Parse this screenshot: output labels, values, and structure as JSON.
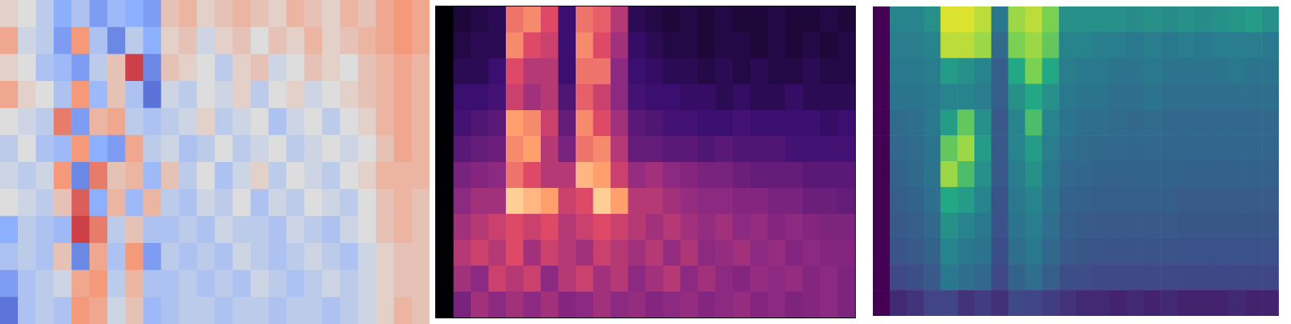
{
  "chart_data": [
    {
      "type": "heatmap",
      "color": "coolwarm",
      "zlim": [
        -1,
        1
      ],
      "xlim": [
        0,
        24
      ],
      "ylim": [
        0,
        12
      ],
      "tick_labels": false,
      "cells": [
        [
          0.1,
          0.0,
          -0.2,
          -0.5,
          -0.3,
          -0.6,
          -0.4,
          -0.5,
          -0.6,
          0.2,
          0.3,
          0.1,
          0.2,
          0.3,
          0.2,
          0.1,
          0.3,
          0.2,
          0.1,
          0.3,
          0.2,
          0.4,
          0.5,
          0.4
        ],
        [
          0.4,
          -0.1,
          -0.2,
          -0.6,
          0.5,
          -0.3,
          -0.7,
          -0.2,
          -0.5,
          0.1,
          0.2,
          -0.1,
          0.1,
          0.2,
          0.0,
          0.2,
          0.1,
          0.3,
          0.1,
          0.2,
          0.3,
          0.4,
          0.5,
          0.4
        ],
        [
          0.1,
          0.0,
          -0.3,
          -0.4,
          -0.6,
          -0.2,
          0.2,
          0.8,
          -0.7,
          0.2,
          0.1,
          0.0,
          -0.2,
          0.1,
          0.2,
          -0.1,
          0.0,
          0.2,
          0.1,
          0.0,
          0.2,
          0.3,
          0.4,
          0.3
        ],
        [
          0.4,
          0.1,
          0.0,
          -0.3,
          0.5,
          -0.4,
          0.2,
          -0.3,
          -0.8,
          -0.1,
          -0.2,
          0.0,
          -0.1,
          0.1,
          -0.2,
          0.0,
          0.1,
          -0.1,
          0.0,
          0.1,
          0.2,
          0.3,
          0.4,
          0.3
        ],
        [
          0.0,
          -0.1,
          -0.2,
          0.6,
          -0.6,
          0.3,
          0.4,
          -0.2,
          -0.3,
          -0.2,
          -0.1,
          0.1,
          -0.2,
          -0.1,
          0.0,
          -0.3,
          -0.1,
          0.0,
          -0.2,
          0.0,
          0.1,
          0.3,
          0.4,
          0.3
        ],
        [
          -0.2,
          0.0,
          -0.3,
          -0.4,
          0.5,
          -0.5,
          -0.6,
          0.4,
          -0.2,
          -0.1,
          -0.3,
          -0.2,
          0.0,
          -0.2,
          -0.1,
          0.0,
          -0.2,
          -0.1,
          0.0,
          -0.1,
          0.0,
          0.2,
          0.4,
          0.3
        ],
        [
          -0.1,
          -0.2,
          -0.1,
          0.5,
          -0.7,
          0.6,
          0.2,
          0.3,
          -0.4,
          0.2,
          -0.2,
          0.0,
          -0.3,
          -0.1,
          0.1,
          -0.2,
          0.0,
          -0.1,
          -0.2,
          0.0,
          0.1,
          0.3,
          0.3,
          0.3
        ],
        [
          0.0,
          -0.1,
          -0.2,
          0.2,
          0.7,
          -0.5,
          0.3,
          -0.4,
          0.3,
          -0.2,
          -0.3,
          -0.1,
          -0.2,
          0.0,
          -0.3,
          -0.1,
          -0.2,
          0.0,
          -0.1,
          -0.2,
          0.0,
          0.2,
          0.3,
          0.2
        ],
        [
          -0.5,
          -0.2,
          -0.3,
          -0.4,
          0.8,
          0.6,
          -0.2,
          0.2,
          -0.3,
          -0.3,
          -0.2,
          -0.3,
          -0.1,
          -0.2,
          -0.2,
          -0.3,
          -0.1,
          -0.2,
          -0.3,
          -0.1,
          0.0,
          0.2,
          0.3,
          0.2
        ],
        [
          -0.3,
          -0.2,
          -0.3,
          0.2,
          -0.7,
          0.4,
          -0.3,
          0.5,
          -0.6,
          -0.2,
          -0.3,
          -0.2,
          -0.3,
          -0.1,
          -0.2,
          -0.3,
          -0.2,
          -0.1,
          -0.2,
          -0.3,
          -0.1,
          0.1,
          0.2,
          0.2
        ],
        [
          -0.6,
          -0.3,
          -0.2,
          -0.1,
          0.4,
          0.5,
          -0.2,
          0.3,
          -0.3,
          -0.3,
          -0.2,
          -0.3,
          -0.2,
          -0.3,
          -0.1,
          -0.2,
          -0.3,
          -0.2,
          -0.1,
          -0.2,
          -0.1,
          0.1,
          0.2,
          0.2
        ],
        [
          -0.8,
          -0.3,
          -0.2,
          -0.3,
          0.5,
          0.4,
          -0.1,
          0.2,
          -0.4,
          -0.3,
          -0.2,
          -0.2,
          -0.3,
          -0.2,
          -0.2,
          -0.3,
          -0.2,
          -0.2,
          -0.3,
          -0.2,
          -0.1,
          0.1,
          0.3,
          0.2
        ]
      ]
    },
    {
      "type": "heatmap",
      "color": "magma",
      "zlim": [
        0,
        1
      ],
      "xlim": [
        0,
        24
      ],
      "ylim": [
        0,
        12
      ],
      "tick_labels": false,
      "cells": [
        [
          0,
          0.1,
          0.12,
          0.15,
          0.7,
          0.75,
          0.6,
          0.2,
          0.7,
          0.65,
          0.5,
          0.15,
          0.12,
          0.1,
          0.12,
          0.1,
          0.12,
          0.1,
          0.1,
          0.12,
          0.1,
          0.1,
          0.12,
          0.1
        ],
        [
          0,
          0.12,
          0.15,
          0.15,
          0.75,
          0.6,
          0.55,
          0.2,
          0.75,
          0.6,
          0.45,
          0.18,
          0.15,
          0.12,
          0.12,
          0.1,
          0.12,
          0.12,
          0.1,
          0.12,
          0.1,
          0.12,
          0.1,
          0.12
        ],
        [
          0,
          0.15,
          0.15,
          0.2,
          0.6,
          0.5,
          0.5,
          0.2,
          0.7,
          0.7,
          0.4,
          0.2,
          0.18,
          0.15,
          0.15,
          0.12,
          0.15,
          0.12,
          0.15,
          0.12,
          0.12,
          0.15,
          0.12,
          0.12
        ],
        [
          0,
          0.2,
          0.2,
          0.22,
          0.55,
          0.45,
          0.5,
          0.25,
          0.65,
          0.55,
          0.4,
          0.22,
          0.2,
          0.2,
          0.18,
          0.18,
          0.15,
          0.18,
          0.15,
          0.15,
          0.18,
          0.15,
          0.15,
          0.15
        ],
        [
          0,
          0.22,
          0.25,
          0.28,
          0.8,
          0.75,
          0.55,
          0.3,
          0.75,
          0.6,
          0.45,
          0.28,
          0.25,
          0.22,
          0.22,
          0.2,
          0.2,
          0.22,
          0.2,
          0.2,
          0.2,
          0.2,
          0.18,
          0.2
        ],
        [
          0,
          0.28,
          0.3,
          0.32,
          0.75,
          0.8,
          0.5,
          0.35,
          0.7,
          0.75,
          0.5,
          0.3,
          0.3,
          0.28,
          0.28,
          0.25,
          0.28,
          0.25,
          0.25,
          0.25,
          0.22,
          0.22,
          0.22,
          0.22
        ],
        [
          0,
          0.35,
          0.38,
          0.4,
          0.7,
          0.6,
          0.5,
          0.5,
          0.85,
          0.8,
          0.55,
          0.42,
          0.45,
          0.4,
          0.38,
          0.35,
          0.35,
          0.32,
          0.3,
          0.3,
          0.3,
          0.28,
          0.28,
          0.28
        ],
        [
          0,
          0.4,
          0.45,
          0.45,
          0.9,
          0.85,
          0.8,
          0.55,
          0.6,
          0.9,
          0.8,
          0.5,
          0.5,
          0.45,
          0.42,
          0.4,
          0.4,
          0.38,
          0.38,
          0.35,
          0.35,
          0.32,
          0.32,
          0.3
        ],
        [
          0,
          0.45,
          0.5,
          0.55,
          0.6,
          0.55,
          0.6,
          0.5,
          0.55,
          0.6,
          0.55,
          0.5,
          0.45,
          0.5,
          0.45,
          0.42,
          0.45,
          0.4,
          0.42,
          0.38,
          0.4,
          0.38,
          0.36,
          0.36
        ],
        [
          0,
          0.5,
          0.55,
          0.5,
          0.6,
          0.45,
          0.55,
          0.5,
          0.45,
          0.55,
          0.5,
          0.45,
          0.5,
          0.42,
          0.48,
          0.4,
          0.42,
          0.45,
          0.4,
          0.42,
          0.38,
          0.4,
          0.38,
          0.38
        ],
        [
          0,
          0.45,
          0.4,
          0.55,
          0.5,
          0.55,
          0.4,
          0.5,
          0.55,
          0.45,
          0.5,
          0.4,
          0.45,
          0.5,
          0.4,
          0.45,
          0.4,
          0.38,
          0.42,
          0.4,
          0.42,
          0.38,
          0.4,
          0.36
        ],
        [
          0,
          0.35,
          0.45,
          0.4,
          0.45,
          0.4,
          0.45,
          0.38,
          0.4,
          0.45,
          0.4,
          0.42,
          0.38,
          0.4,
          0.42,
          0.38,
          0.4,
          0.42,
          0.38,
          0.4,
          0.36,
          0.38,
          0.4,
          0.36
        ]
      ]
    },
    {
      "type": "heatmap",
      "color": "viridis",
      "zlim": [
        0,
        1
      ],
      "xlim": [
        0,
        24
      ],
      "ylim": [
        0,
        12
      ],
      "tick_labels": false,
      "cells": [
        [
          0,
          0.45,
          0.45,
          0.5,
          0.95,
          0.95,
          0.9,
          0.4,
          0.85,
          0.9,
          0.8,
          0.5,
          0.5,
          0.5,
          0.5,
          0.48,
          0.5,
          0.48,
          0.5,
          0.48,
          0.5,
          0.52,
          0.55,
          0.5
        ],
        [
          0,
          0.42,
          0.42,
          0.45,
          0.9,
          0.9,
          0.85,
          0.35,
          0.8,
          0.85,
          0.75,
          0.45,
          0.45,
          0.42,
          0.42,
          0.4,
          0.42,
          0.4,
          0.42,
          0.4,
          0.42,
          0.42,
          0.42,
          0.4
        ],
        [
          0,
          0.4,
          0.4,
          0.42,
          0.55,
          0.5,
          0.45,
          0.3,
          0.6,
          0.8,
          0.6,
          0.42,
          0.4,
          0.4,
          0.38,
          0.38,
          0.4,
          0.38,
          0.38,
          0.38,
          0.38,
          0.4,
          0.38,
          0.38
        ],
        [
          0,
          0.38,
          0.38,
          0.4,
          0.45,
          0.45,
          0.42,
          0.3,
          0.5,
          0.6,
          0.5,
          0.4,
          0.38,
          0.38,
          0.36,
          0.36,
          0.38,
          0.36,
          0.36,
          0.36,
          0.36,
          0.36,
          0.36,
          0.36
        ],
        [
          0,
          0.35,
          0.36,
          0.4,
          0.55,
          0.75,
          0.5,
          0.28,
          0.45,
          0.7,
          0.45,
          0.38,
          0.36,
          0.36,
          0.35,
          0.34,
          0.35,
          0.34,
          0.34,
          0.34,
          0.34,
          0.34,
          0.34,
          0.34
        ],
        [
          0,
          0.34,
          0.35,
          0.38,
          0.75,
          0.85,
          0.55,
          0.28,
          0.45,
          0.55,
          0.42,
          0.36,
          0.35,
          0.34,
          0.34,
          0.33,
          0.34,
          0.33,
          0.33,
          0.33,
          0.33,
          0.33,
          0.33,
          0.33
        ],
        [
          0,
          0.32,
          0.34,
          0.38,
          0.85,
          0.7,
          0.5,
          0.28,
          0.42,
          0.5,
          0.4,
          0.34,
          0.33,
          0.32,
          0.32,
          0.32,
          0.32,
          0.32,
          0.31,
          0.31,
          0.31,
          0.31,
          0.31,
          0.31
        ],
        [
          0,
          0.3,
          0.32,
          0.36,
          0.6,
          0.55,
          0.45,
          0.26,
          0.4,
          0.45,
          0.38,
          0.32,
          0.31,
          0.3,
          0.3,
          0.3,
          0.3,
          0.3,
          0.29,
          0.29,
          0.29,
          0.29,
          0.29,
          0.29
        ],
        [
          0,
          0.28,
          0.3,
          0.34,
          0.5,
          0.45,
          0.4,
          0.25,
          0.38,
          0.42,
          0.36,
          0.3,
          0.29,
          0.28,
          0.28,
          0.28,
          0.28,
          0.28,
          0.27,
          0.27,
          0.27,
          0.27,
          0.27,
          0.27
        ],
        [
          0,
          0.26,
          0.28,
          0.32,
          0.45,
          0.4,
          0.38,
          0.24,
          0.36,
          0.4,
          0.34,
          0.28,
          0.27,
          0.26,
          0.26,
          0.26,
          0.26,
          0.26,
          0.25,
          0.25,
          0.25,
          0.25,
          0.25,
          0.25
        ],
        [
          0,
          0.22,
          0.24,
          0.28,
          0.4,
          0.36,
          0.34,
          0.22,
          0.32,
          0.36,
          0.3,
          0.24,
          0.23,
          0.22,
          0.22,
          0.22,
          0.22,
          0.22,
          0.21,
          0.21,
          0.21,
          0.21,
          0.21,
          0.21
        ],
        [
          0,
          0.12,
          0.15,
          0.2,
          0.2,
          0.15,
          0.18,
          0.14,
          0.22,
          0.2,
          0.18,
          0.15,
          0.12,
          0.12,
          0.1,
          0.12,
          0.1,
          0.12,
          0.1,
          0.1,
          0.1,
          0.12,
          0.1,
          0.1
        ]
      ]
    }
  ]
}
